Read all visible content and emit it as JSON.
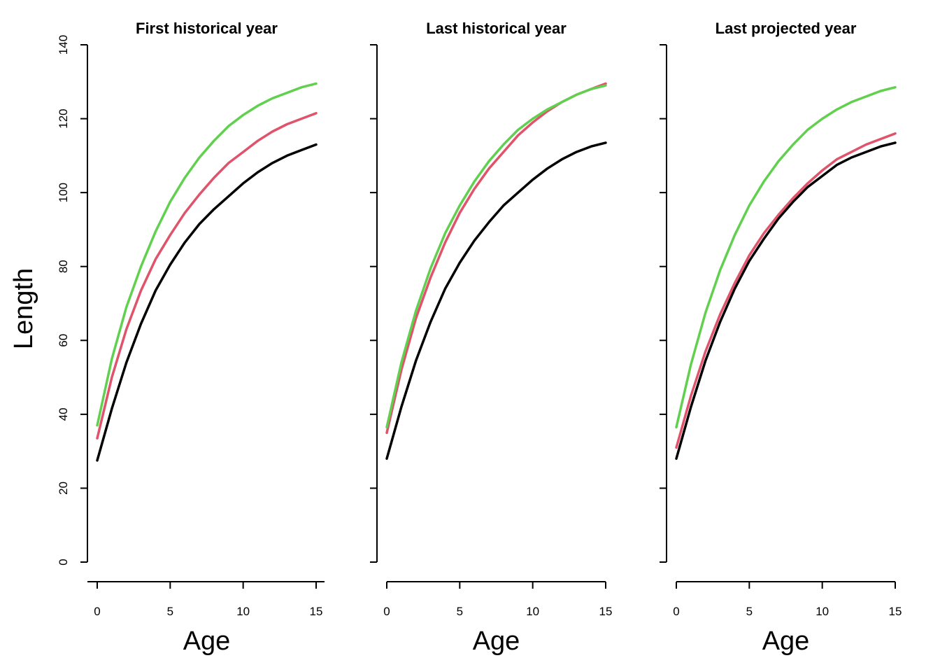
{
  "figure": {
    "ylabel": "Length"
  },
  "chart_data": [
    {
      "type": "line",
      "title": "First historical year",
      "xlabel": "Age",
      "ylabel": "Length",
      "x": [
        0,
        1,
        2,
        3,
        4,
        5,
        6,
        7,
        8,
        9,
        10,
        11,
        12,
        13,
        14,
        15
      ],
      "xlim": [
        0,
        15
      ],
      "ylim": [
        0,
        140
      ],
      "x_ticks": [
        0,
        5,
        10,
        15
      ],
      "y_ticks": [
        0,
        20,
        40,
        60,
        80,
        100,
        120,
        140
      ],
      "grid": false,
      "series": [
        {
          "color": "#000000",
          "values": [
            27.5,
            41.5,
            54.0,
            64.5,
            73.5,
            80.5,
            86.5,
            91.5,
            95.5,
            99.0,
            102.5,
            105.5,
            108.0,
            110.0,
            111.5,
            113.0
          ]
        },
        {
          "color": "#DF536B",
          "values": [
            33.5,
            50.0,
            63.0,
            73.5,
            82.0,
            88.5,
            94.5,
            99.5,
            104.0,
            108.0,
            111.0,
            114.0,
            116.5,
            118.5,
            120.0,
            121.5
          ]
        },
        {
          "color": "#61D04F",
          "values": [
            37.0,
            55.0,
            69.0,
            80.0,
            89.5,
            97.5,
            104.0,
            109.5,
            114.0,
            118.0,
            121.0,
            123.5,
            125.5,
            127.0,
            128.5,
            129.5
          ]
        }
      ]
    },
    {
      "type": "line",
      "title": "Last historical year",
      "xlabel": "Age",
      "ylabel": "",
      "x": [
        0,
        1,
        2,
        3,
        4,
        5,
        6,
        7,
        8,
        9,
        10,
        11,
        12,
        13,
        14,
        15
      ],
      "xlim": [
        0,
        15
      ],
      "ylim": [
        0,
        140
      ],
      "x_ticks": [
        0,
        5,
        10,
        15
      ],
      "y_ticks": [
        0,
        20,
        40,
        60,
        80,
        100,
        120,
        140
      ],
      "grid": false,
      "series": [
        {
          "color": "#000000",
          "values": [
            28.0,
            42.0,
            54.5,
            65.0,
            74.0,
            81.0,
            87.0,
            92.0,
            96.5,
            100.0,
            103.5,
            106.5,
            109.0,
            111.0,
            112.5,
            113.5
          ]
        },
        {
          "color": "#DF536B",
          "values": [
            35.0,
            52.0,
            66.0,
            77.0,
            86.5,
            94.5,
            101.0,
            106.5,
            111.0,
            115.5,
            119.0,
            122.0,
            124.5,
            126.5,
            128.0,
            129.5
          ]
        },
        {
          "color": "#61D04F",
          "values": [
            36.5,
            54.0,
            68.0,
            79.5,
            89.0,
            96.5,
            103.0,
            108.5,
            113.0,
            117.0,
            120.0,
            122.5,
            124.5,
            126.5,
            128.0,
            129.0
          ]
        }
      ]
    },
    {
      "type": "line",
      "title": "Last projected year",
      "xlabel": "Age",
      "ylabel": "",
      "x": [
        0,
        1,
        2,
        3,
        4,
        5,
        6,
        7,
        8,
        9,
        10,
        11,
        12,
        13,
        14,
        15
      ],
      "xlim": [
        0,
        15
      ],
      "ylim": [
        0,
        140
      ],
      "x_ticks": [
        0,
        5,
        10,
        15
      ],
      "y_ticks": [
        0,
        20,
        40,
        60,
        80,
        100,
        120,
        140
      ],
      "grid": false,
      "series": [
        {
          "color": "#000000",
          "values": [
            28.0,
            42.0,
            54.5,
            65.0,
            74.0,
            81.5,
            87.5,
            93.0,
            97.5,
            101.5,
            104.5,
            107.5,
            109.5,
            111.0,
            112.5,
            113.5
          ]
        },
        {
          "color": "#DF536B",
          "values": [
            31.0,
            45.0,
            57.0,
            67.0,
            75.5,
            83.0,
            89.0,
            94.0,
            98.5,
            102.5,
            106.0,
            109.0,
            111.0,
            113.0,
            114.5,
            116.0
          ]
        },
        {
          "color": "#61D04F",
          "values": [
            36.5,
            53.5,
            67.5,
            79.0,
            88.5,
            96.5,
            103.0,
            108.5,
            113.0,
            117.0,
            120.0,
            122.5,
            124.5,
            126.0,
            127.5,
            128.5
          ]
        }
      ]
    }
  ]
}
